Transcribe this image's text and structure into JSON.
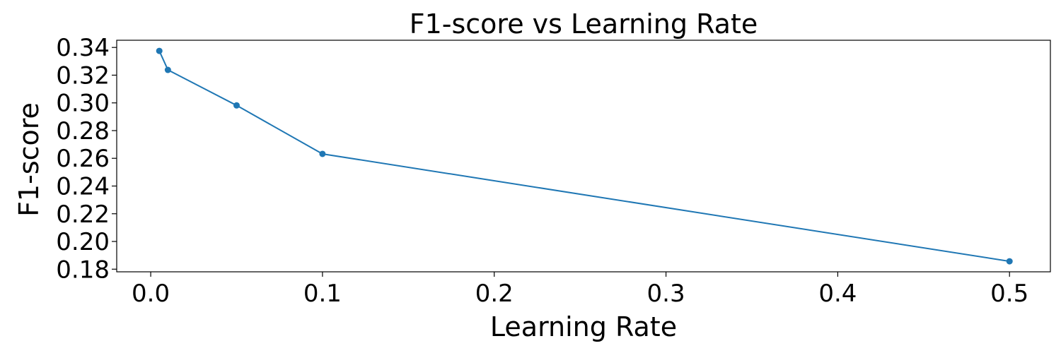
{
  "chart_data": {
    "type": "line",
    "title": "F1-score vs Learning Rate",
    "xlabel": "Learning Rate",
    "ylabel": "F1-score",
    "xlim": [
      -0.0198,
      0.5238
    ],
    "ylim": [
      0.1781,
      0.3452
    ],
    "xticks": [
      "0.0",
      "0.1",
      "0.2",
      "0.3",
      "0.4",
      "0.5"
    ],
    "yticks": [
      "0.18",
      "0.20",
      "0.22",
      "0.24",
      "0.26",
      "0.28",
      "0.30",
      "0.32",
      "0.34"
    ],
    "grid": false,
    "legend": "none",
    "series": [
      {
        "x": [
          0.005,
          0.01,
          0.05,
          0.1,
          0.5
        ],
        "y": [
          0.3375,
          0.3238,
          0.2982,
          0.2632,
          0.1857
        ],
        "color": "#1f77b4",
        "marker": "circle"
      }
    ]
  }
}
